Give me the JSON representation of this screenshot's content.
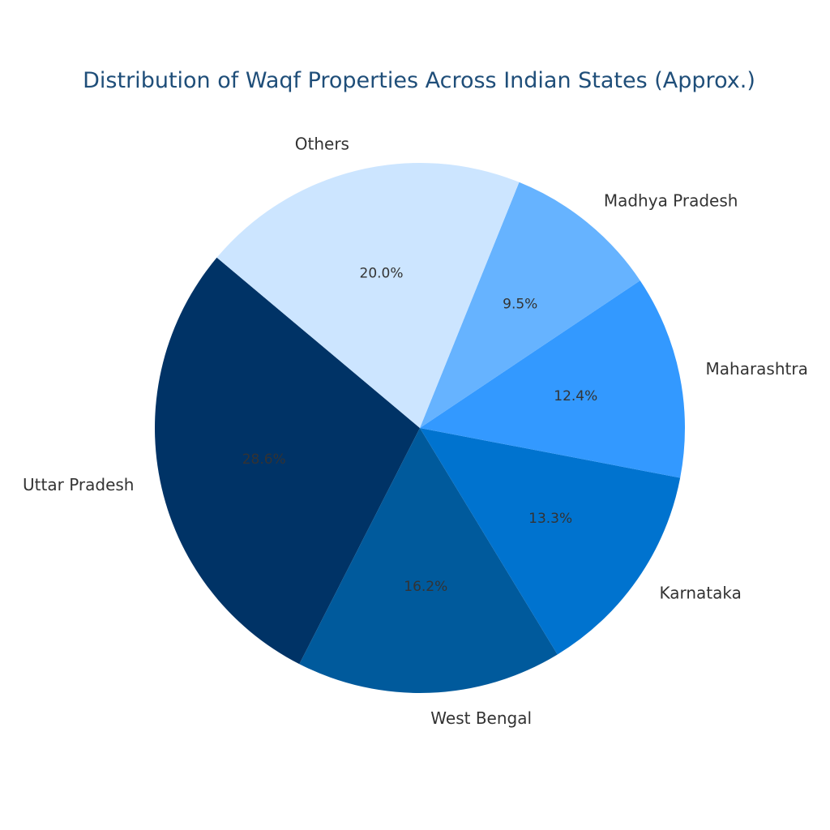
{
  "chart_data": {
    "type": "pie",
    "title": "Distribution of Waqf Properties Across Indian States (Approx.)",
    "title_color": "#1f4e79",
    "start_angle_deg": 140,
    "direction": "counterclockwise",
    "slices": [
      {
        "label": "Uttar Pradesh",
        "value": 28.6,
        "pct_label": "28.6%",
        "color": "#003366"
      },
      {
        "label": "West Bengal",
        "value": 16.2,
        "pct_label": "16.2%",
        "color": "#005a9c"
      },
      {
        "label": "Karnataka",
        "value": 13.3,
        "pct_label": "13.3%",
        "color": "#0073cf"
      },
      {
        "label": "Maharashtra",
        "value": 12.4,
        "pct_label": "12.4%",
        "color": "#3399ff"
      },
      {
        "label": "Madhya Pradesh",
        "value": 9.5,
        "pct_label": "9.5%",
        "color": "#66b3ff"
      },
      {
        "label": "Others",
        "value": 20.0,
        "pct_label": "20.0%",
        "color": "#cce5ff"
      }
    ]
  }
}
